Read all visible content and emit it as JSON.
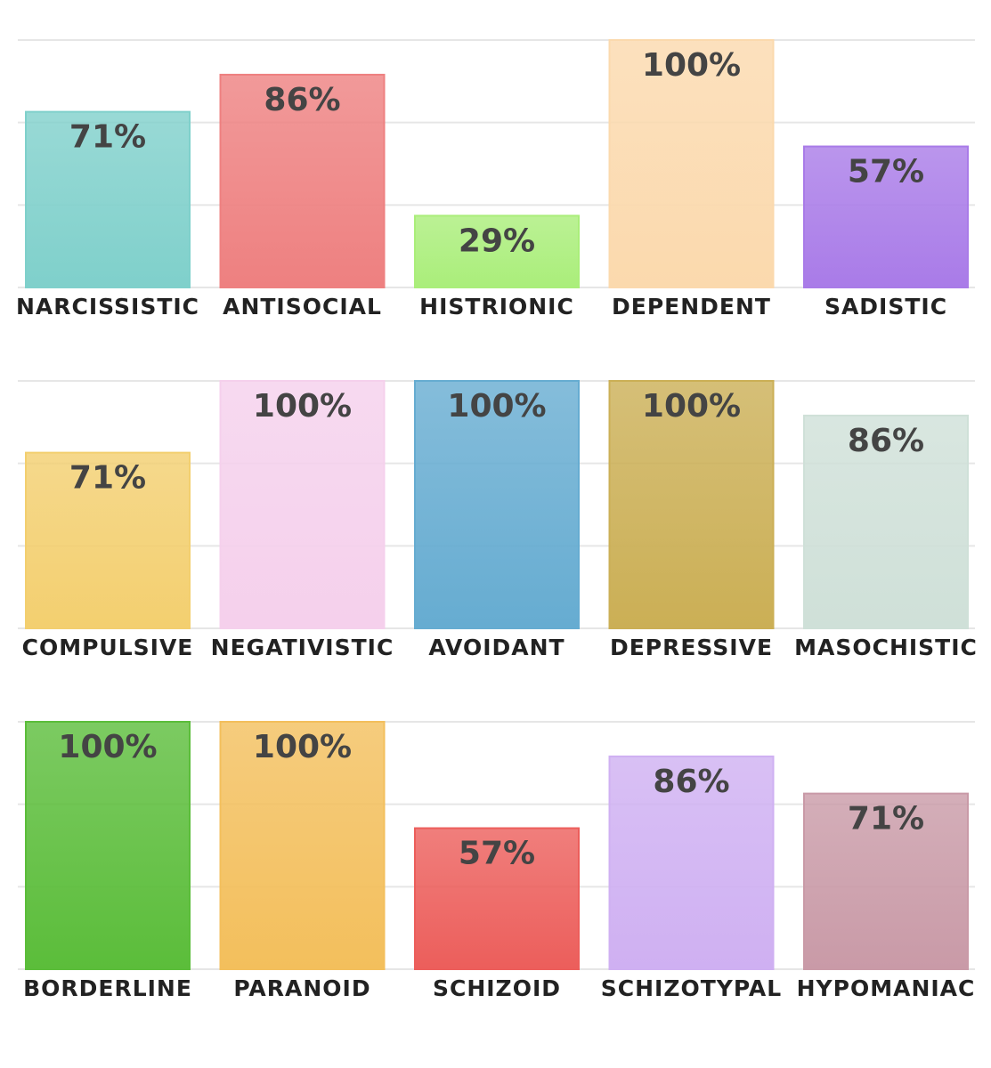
{
  "chart_data": [
    {
      "type": "bar",
      "categories": [
        "NARCISSISTIC",
        "ANTISOCIAL",
        "HISTRIONIC",
        "DEPENDENT",
        "SADISTIC"
      ],
      "values": [
        71,
        86,
        29,
        100,
        57
      ],
      "value_labels": [
        "71%",
        "86%",
        "29%",
        "100%",
        "57%"
      ],
      "colors": [
        "#7fd0cb",
        "#ee8080",
        "#aaee7a",
        "#fbd9ad",
        "#a97be8"
      ],
      "ylim": [
        0,
        100
      ],
      "yticks": [
        0,
        33.3,
        66.7,
        100
      ],
      "grid": true
    },
    {
      "type": "bar",
      "categories": [
        "COMPULSIVE",
        "NEGATIVISTIC",
        "AVOIDANT",
        "DEPRESSIVE",
        "MASOCHISTIC"
      ],
      "values": [
        71,
        100,
        100,
        100,
        86
      ],
      "value_labels": [
        "71%",
        "100%",
        "100%",
        "100%",
        "86%"
      ],
      "colors": [
        "#f3cf6f",
        "#f5d0ec",
        "#66acd1",
        "#cbaf55",
        "#cfe0d8"
      ],
      "ylim": [
        0,
        100
      ],
      "yticks": [
        0,
        33.3,
        66.7,
        100
      ],
      "grid": true
    },
    {
      "type": "bar",
      "categories": [
        "BORDERLINE",
        "PARANOID",
        "SCHIZOID",
        "SCHIZOTYPAL",
        "HYPOMANIAC"
      ],
      "values": [
        100,
        100,
        57,
        86,
        71
      ],
      "value_labels": [
        "100%",
        "100%",
        "57%",
        "86%",
        "71%"
      ],
      "colors": [
        "#5bbd3a",
        "#f3bf5c",
        "#ec5e5b",
        "#cfb0f2",
        "#c99aa7"
      ],
      "ylim": [
        0,
        100
      ],
      "yticks": [
        0,
        33.3,
        66.7,
        100
      ],
      "grid": true
    }
  ]
}
